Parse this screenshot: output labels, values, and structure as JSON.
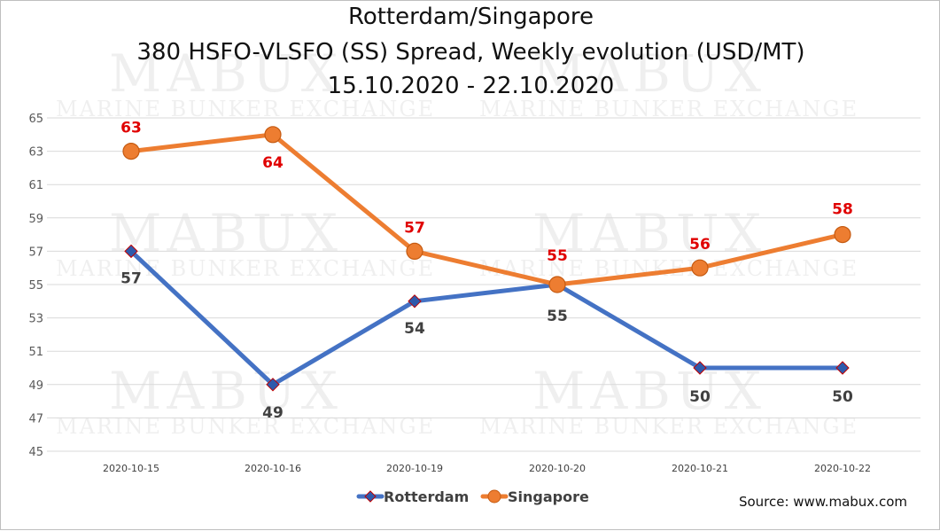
{
  "chart_data": {
    "type": "line",
    "title": [
      "Rotterdam/Singapore",
      "380 HSFO-VLSFO (SS) Spread, Weekly evolution (USD/MT)",
      "15.10.2020 - 22.10.2020"
    ],
    "categories": [
      "2020-10-15",
      "2020-10-16",
      "2020-10-19",
      "2020-10-20",
      "2020-10-21",
      "2020-10-22"
    ],
    "series": [
      {
        "name": "Rotterdam",
        "values": [
          57,
          49,
          54,
          55,
          50,
          50
        ],
        "color": "#4472C4",
        "marker_color": "#2E5AAC",
        "label_color": "#404040"
      },
      {
        "name": "Singapore",
        "values": [
          63,
          64,
          57,
          55,
          56,
          58
        ],
        "color": "#ED7D31",
        "marker_color": "#ED7D31",
        "label_color": "#E00000"
      }
    ],
    "ylim": [
      45,
      65
    ],
    "yticks": [
      45,
      47,
      49,
      51,
      53,
      55,
      57,
      59,
      61,
      63,
      65
    ],
    "grid": true,
    "legend": "bottom-center",
    "xlabel": "",
    "ylabel": ""
  },
  "watermark": {
    "brand": "MABUX",
    "tagline": "MARINE BUNKER EXCHANGE"
  },
  "source_text": "Source: www.mabux.com"
}
